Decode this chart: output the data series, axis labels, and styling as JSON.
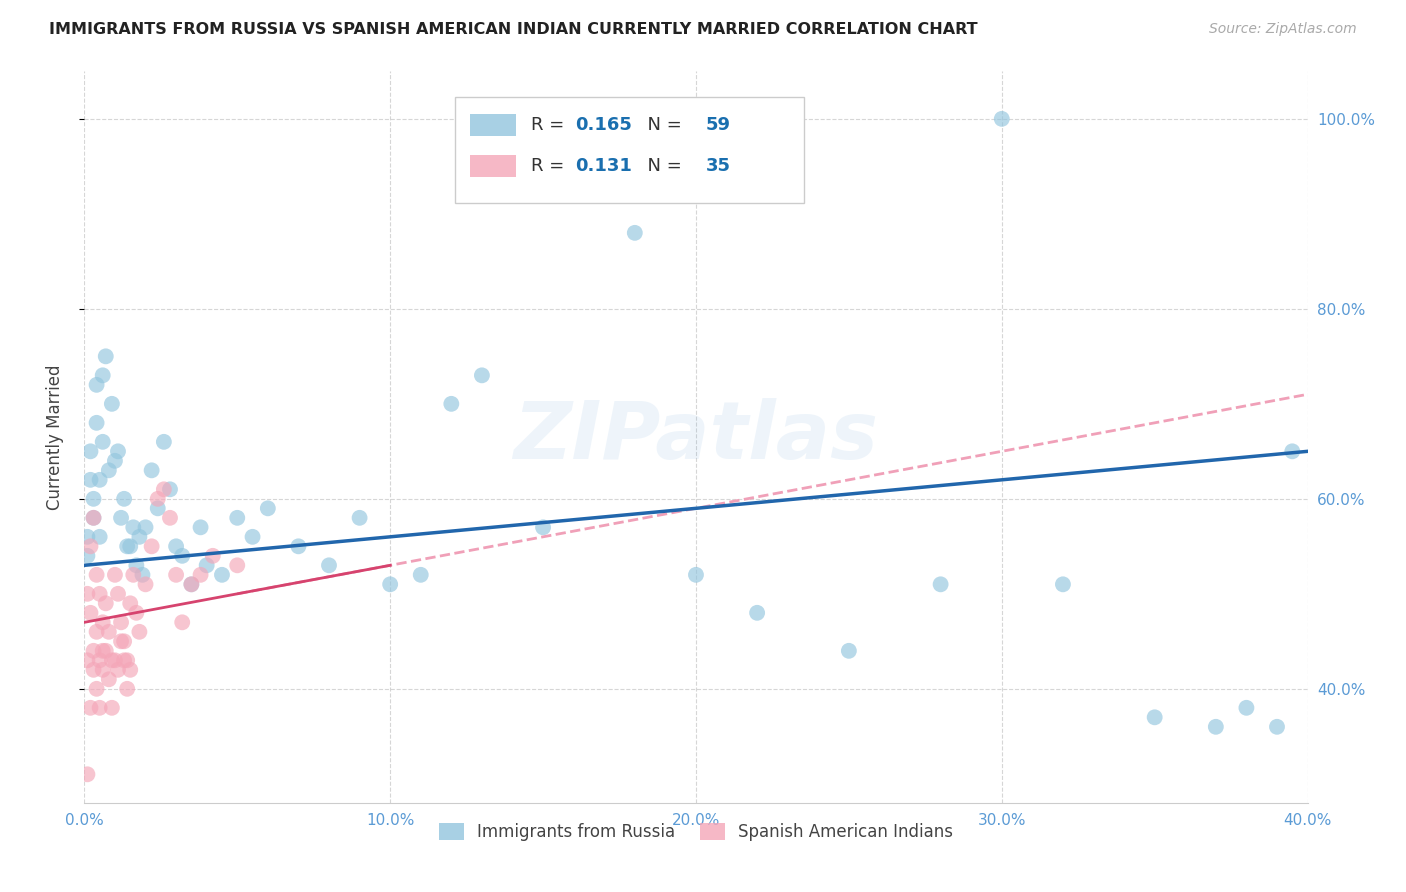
{
  "title": "IMMIGRANTS FROM RUSSIA VS SPANISH AMERICAN INDIAN CURRENTLY MARRIED CORRELATION CHART",
  "source": "Source: ZipAtlas.com",
  "ylabel": "Currently Married",
  "legend_label1": "Immigrants from Russia",
  "legend_label2": "Spanish American Indians",
  "R1": 0.165,
  "N1": 59,
  "R2": 0.131,
  "N2": 35,
  "xmin": 0.0,
  "xmax": 0.4,
  "ymin": 0.28,
  "ymax": 1.05,
  "yticks": [
    0.4,
    0.6,
    0.8,
    1.0
  ],
  "xticks": [
    0.0,
    0.1,
    0.2,
    0.3,
    0.4
  ],
  "color_blue": "#92c5de",
  "color_pink": "#f4a6b8",
  "trendline_blue": "#2166ac",
  "trendline_pink": "#d6436e",
  "trendline_pink_dashed": "#f0a0b8",
  "watermark": "ZIPatlas",
  "blue_scatter_x": [
    0.001,
    0.001,
    0.002,
    0.002,
    0.003,
    0.003,
    0.004,
    0.004,
    0.005,
    0.005,
    0.006,
    0.006,
    0.007,
    0.008,
    0.009,
    0.01,
    0.011,
    0.012,
    0.013,
    0.014,
    0.015,
    0.016,
    0.017,
    0.018,
    0.019,
    0.02,
    0.022,
    0.024,
    0.026,
    0.028,
    0.03,
    0.032,
    0.035,
    0.038,
    0.04,
    0.045,
    0.05,
    0.055,
    0.06,
    0.07,
    0.08,
    0.09,
    0.1,
    0.11,
    0.12,
    0.13,
    0.15,
    0.18,
    0.2,
    0.22,
    0.25,
    0.28,
    0.3,
    0.32,
    0.35,
    0.37,
    0.38,
    0.39,
    0.395
  ],
  "blue_scatter_y": [
    0.54,
    0.56,
    0.62,
    0.65,
    0.6,
    0.58,
    0.72,
    0.68,
    0.62,
    0.56,
    0.73,
    0.66,
    0.75,
    0.63,
    0.7,
    0.64,
    0.65,
    0.58,
    0.6,
    0.55,
    0.55,
    0.57,
    0.53,
    0.56,
    0.52,
    0.57,
    0.63,
    0.59,
    0.66,
    0.61,
    0.55,
    0.54,
    0.51,
    0.57,
    0.53,
    0.52,
    0.58,
    0.56,
    0.59,
    0.55,
    0.53,
    0.58,
    0.51,
    0.52,
    0.7,
    0.73,
    0.57,
    0.88,
    0.52,
    0.48,
    0.44,
    0.51,
    1.0,
    0.51,
    0.37,
    0.36,
    0.38,
    0.36,
    0.65
  ],
  "pink_scatter_x": [
    0.001,
    0.001,
    0.002,
    0.002,
    0.003,
    0.003,
    0.004,
    0.004,
    0.005,
    0.005,
    0.006,
    0.006,
    0.007,
    0.008,
    0.009,
    0.01,
    0.011,
    0.012,
    0.013,
    0.014,
    0.015,
    0.016,
    0.017,
    0.018,
    0.02,
    0.022,
    0.024,
    0.026,
    0.028,
    0.03,
    0.032,
    0.035,
    0.038,
    0.042,
    0.05
  ],
  "pink_scatter_y": [
    0.5,
    0.43,
    0.48,
    0.55,
    0.44,
    0.58,
    0.46,
    0.52,
    0.43,
    0.5,
    0.47,
    0.44,
    0.49,
    0.46,
    0.43,
    0.52,
    0.5,
    0.47,
    0.45,
    0.43,
    0.49,
    0.52,
    0.48,
    0.46,
    0.51,
    0.55,
    0.6,
    0.61,
    0.58,
    0.52,
    0.47,
    0.51,
    0.52,
    0.54,
    0.53
  ],
  "pink_low_x": [
    0.001,
    0.002,
    0.003,
    0.004,
    0.005,
    0.006,
    0.007,
    0.008,
    0.009,
    0.01,
    0.011,
    0.012,
    0.013,
    0.014,
    0.015
  ],
  "pink_low_y": [
    0.31,
    0.38,
    0.42,
    0.4,
    0.38,
    0.42,
    0.44,
    0.41,
    0.38,
    0.43,
    0.42,
    0.45,
    0.43,
    0.4,
    0.42
  ]
}
